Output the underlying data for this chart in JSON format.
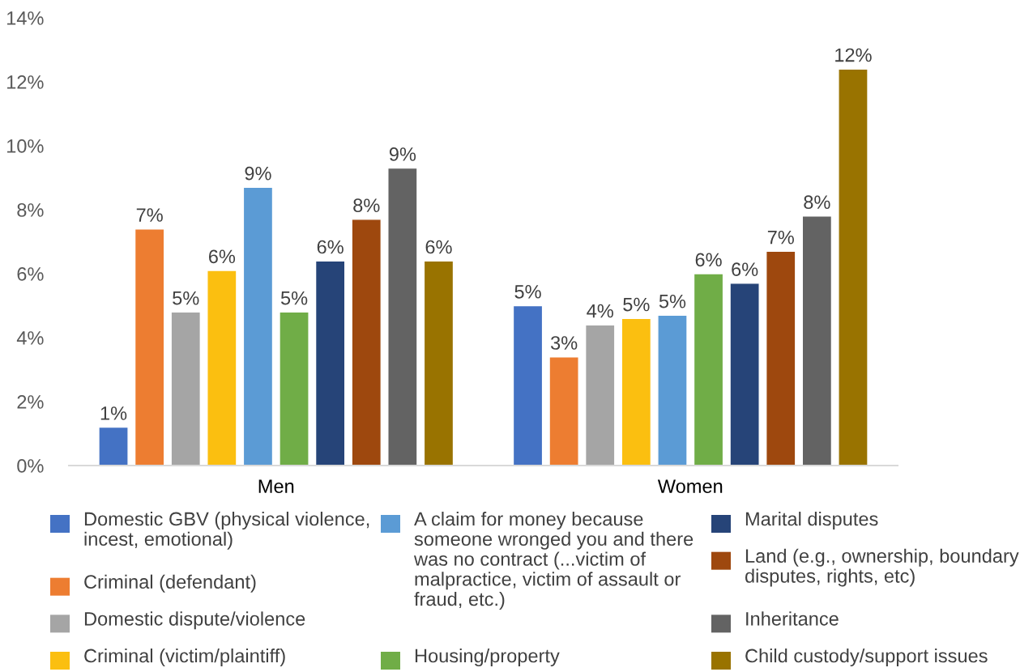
{
  "chart_data": {
    "type": "bar",
    "categories": [
      "Men",
      "Women"
    ],
    "series": [
      {
        "name": "Domestic GBV (physical violence, incest, emotional)",
        "color": "#4472c4",
        "values": [
          1.2,
          5.0
        ],
        "value_labels": [
          "1%",
          "5%"
        ]
      },
      {
        "name": "Criminal (defendant)",
        "color": "#ed7d31",
        "values": [
          7.4,
          3.4
        ],
        "value_labels": [
          "7%",
          "3%"
        ]
      },
      {
        "name": "Domestic dispute/violence",
        "color": "#a5a5a5",
        "values": [
          4.8,
          4.4
        ],
        "value_labels": [
          "5%",
          "4%"
        ]
      },
      {
        "name": "Criminal (victim/plaintiff)",
        "color": "#fbbf10",
        "values": [
          6.1,
          4.6
        ],
        "value_labels": [
          "6%",
          "5%"
        ]
      },
      {
        "name": "A claim for money because someone wronged you and there was no contract (...victim of malpractice, victim of assault or fraud, etc.)",
        "color": "#5b9bd5",
        "values": [
          8.7,
          4.7
        ],
        "value_labels": [
          "9%",
          "5%"
        ]
      },
      {
        "name": "Housing/property",
        "color": "#70ad47",
        "values": [
          4.8,
          6.0
        ],
        "value_labels": [
          "5%",
          "6%"
        ]
      },
      {
        "name": "Marital disputes",
        "color": "#264478",
        "values": [
          6.4,
          5.7
        ],
        "value_labels": [
          "6%",
          "6%"
        ]
      },
      {
        "name": "Land (e.g., ownership, boundary disputes, rights, etc)",
        "color": "#9e480e",
        "values": [
          7.7,
          6.7
        ],
        "value_labels": [
          "8%",
          "7%"
        ]
      },
      {
        "name": "Inheritance",
        "color": "#636363",
        "values": [
          9.3,
          7.8
        ],
        "value_labels": [
          "9%",
          "8%"
        ]
      },
      {
        "name": "Child custody/support issues",
        "color": "#997300",
        "values": [
          6.4,
          12.4
        ],
        "value_labels": [
          "6%",
          "12%"
        ]
      }
    ],
    "ylim": [
      0,
      14
    ],
    "yticks": [
      {
        "value": 0,
        "label": "0%"
      },
      {
        "value": 2,
        "label": "2%"
      },
      {
        "value": 4,
        "label": "4%"
      },
      {
        "value": 6,
        "label": "6%"
      },
      {
        "value": 8,
        "label": "8%"
      },
      {
        "value": 10,
        "label": "10%"
      },
      {
        "value": 12,
        "label": "12%"
      },
      {
        "value": 14,
        "label": "14%"
      }
    ],
    "legend": "bottom"
  }
}
